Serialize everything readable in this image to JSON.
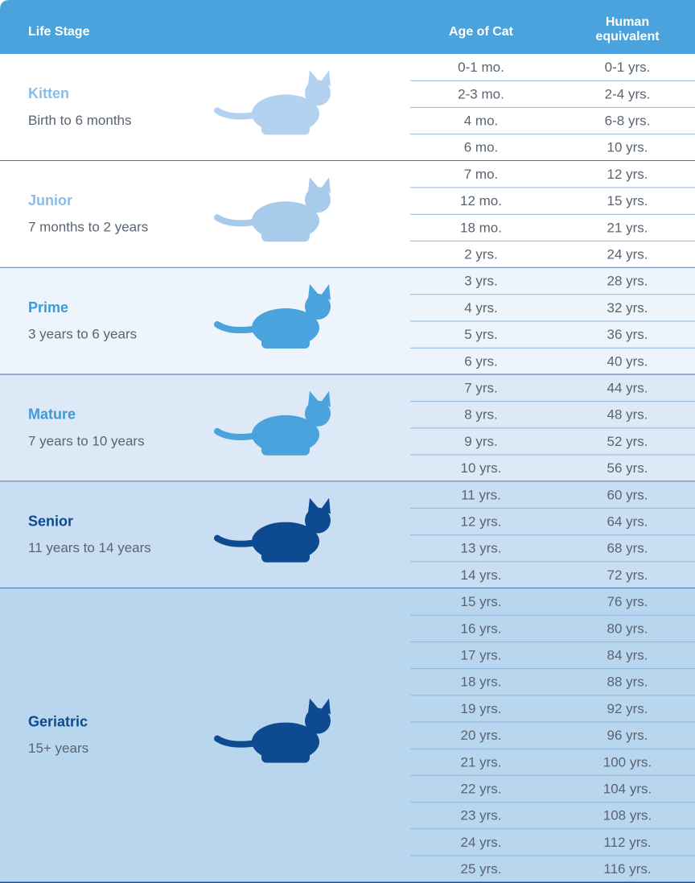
{
  "header": {
    "life_stage": "Life Stage",
    "age_of_cat": "Age of Cat",
    "human_line1": "Human",
    "human_line2": "equivalent"
  },
  "groups": [
    {
      "name": "Kitten",
      "range": "Birth to 6 months",
      "rows": [
        [
          "0-1 mo.",
          "0-1 yrs."
        ],
        [
          "2-3 mo.",
          "2-4 yrs."
        ],
        [
          "4 mo.",
          "6-8 yrs."
        ],
        [
          "6 mo.",
          "10 yrs."
        ]
      ]
    },
    {
      "name": "Junior",
      "range": "7 months to 2 years",
      "rows": [
        [
          "7 mo.",
          "12 yrs."
        ],
        [
          "12 mo.",
          "15 yrs."
        ],
        [
          "18 mo.",
          "21 yrs."
        ],
        [
          "2 yrs.",
          "24 yrs."
        ]
      ]
    },
    {
      "name": "Prime",
      "range": "3 years to 6 years",
      "rows": [
        [
          "3 yrs.",
          "28 yrs."
        ],
        [
          "4 yrs.",
          "32 yrs."
        ],
        [
          "5 yrs.",
          "36 yrs."
        ],
        [
          "6 yrs.",
          "40 yrs."
        ]
      ]
    },
    {
      "name": "Mature",
      "range": "7 years to 10 years",
      "rows": [
        [
          "7 yrs.",
          "44 yrs."
        ],
        [
          "8 yrs.",
          "48 yrs."
        ],
        [
          "9 yrs.",
          "52 yrs."
        ],
        [
          "10 yrs.",
          "56 yrs."
        ]
      ]
    },
    {
      "name": "Senior",
      "range": "11 years to 14 years",
      "rows": [
        [
          "11 yrs.",
          "60 yrs."
        ],
        [
          "12 yrs.",
          "64 yrs."
        ],
        [
          "13 yrs.",
          "68 yrs."
        ],
        [
          "14 yrs.",
          "72 yrs."
        ]
      ]
    },
    {
      "name": "Geriatric",
      "range": "15+ years",
      "rows": [
        [
          "15 yrs.",
          "76 yrs."
        ],
        [
          "16 yrs.",
          "80 yrs."
        ],
        [
          "17 yrs.",
          "84 yrs."
        ],
        [
          "18 yrs.",
          "88 yrs."
        ],
        [
          "19 yrs.",
          "92 yrs."
        ],
        [
          "20 yrs.",
          "96 yrs."
        ],
        [
          "21 yrs.",
          "100 yrs."
        ],
        [
          "22 yrs.",
          "104 yrs."
        ],
        [
          "23 yrs.",
          "108 yrs."
        ],
        [
          "24 yrs.",
          "112 yrs."
        ],
        [
          "25 yrs.",
          "116 yrs."
        ]
      ]
    }
  ]
}
